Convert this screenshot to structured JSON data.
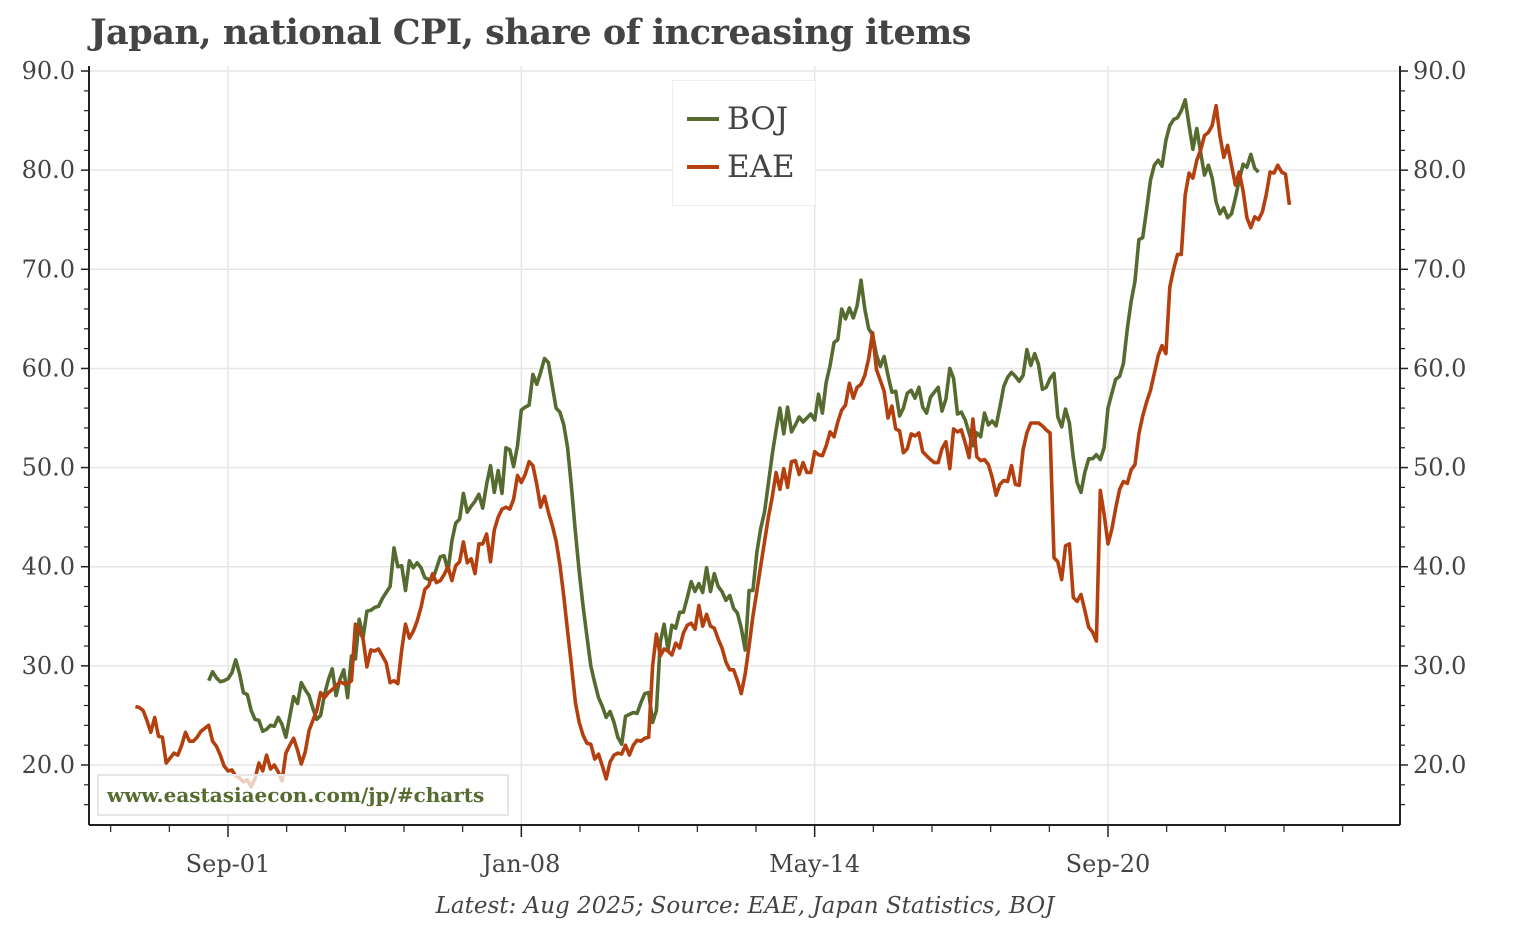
{
  "chart_data": {
    "type": "line",
    "title": "Japan, national CPI, share of increasing items",
    "xlabel": "",
    "ylabel": "",
    "ylim": [
      14,
      90.5
    ],
    "yticks": [
      20,
      30,
      40,
      50,
      60,
      70,
      80,
      90
    ],
    "ytick_labels": [
      "20.0",
      "30.0",
      "40.0",
      "50.0",
      "60.0",
      "70.0",
      "80.0",
      "90.0"
    ],
    "xtick_labels": [
      "Sep-01",
      "Jan-08",
      "May-14",
      "Sep-20"
    ],
    "grid": true,
    "legend_position": "top-center",
    "x_frequency": "monthly",
    "x_start": "1999-09",
    "x_end": "2025-08",
    "series": [
      {
        "name": "BOJ",
        "color": "#556b2f",
        "start": "2001-04",
        "values": [
          28.5,
          29.4,
          28.8,
          28.4,
          28.5,
          28.7,
          29.3,
          30.6,
          29.2,
          27.3,
          27.1,
          25.5,
          24.6,
          24.5,
          23.4,
          23.6,
          24.0,
          23.9,
          24.8,
          24.1,
          22.8,
          24.9,
          26.9,
          26.2,
          28.3,
          27.6,
          27.0,
          25.7,
          24.6,
          25.0,
          27.1,
          28.6,
          29.7,
          27.0,
          28.6,
          29.6,
          26.8,
          31.0,
          30.7,
          34.7,
          32.9,
          35.5,
          35.6,
          35.9,
          36.0,
          36.8,
          37.4,
          38.0,
          41.9,
          40.0,
          40.1,
          37.6,
          40.6,
          39.9,
          40.4,
          39.9,
          38.9,
          38.7,
          38.7,
          39.8,
          41.0,
          41.1,
          39.6,
          42.6,
          44.4,
          44.8,
          47.4,
          45.5,
          46.1,
          46.6,
          47.3,
          45.9,
          48.3,
          50.2,
          47.5,
          49.7,
          47.4,
          52.0,
          51.8,
          50.1,
          52.2,
          55.8,
          56.1,
          56.3,
          59.4,
          58.4,
          59.6,
          61.0,
          60.6,
          58.3,
          56.0,
          55.6,
          54.3,
          52.0,
          48.0,
          43.5,
          39.5,
          36.0,
          33.0,
          30.0,
          28.3,
          26.8,
          25.9,
          24.8,
          25.4,
          24.3,
          22.8,
          22.1,
          24.9,
          25.1,
          25.3,
          25.2,
          26.3,
          27.2,
          27.3,
          24.3,
          25.5,
          32.4,
          34.2,
          31.6,
          34.1,
          33.8,
          35.4,
          35.4,
          36.9,
          38.5,
          37.5,
          38.3,
          37.4,
          39.9,
          37.5,
          39.3,
          38.0,
          37.5,
          36.6,
          37.1,
          35.8,
          35.3,
          33.8,
          31.6,
          37.6,
          37.6,
          41.4,
          43.8,
          45.5,
          48.4,
          51.3,
          53.8,
          56.0,
          53.4,
          56.1,
          53.6,
          54.3,
          55.1,
          54.6,
          55.0,
          55.4,
          54.8,
          57.4,
          55.5,
          58.6,
          60.3,
          62.6,
          62.9,
          66.0,
          65.0,
          66.1,
          65.1,
          66.3,
          68.9,
          66.0,
          64.0,
          63.4,
          61.4,
          60.2,
          61.2,
          59.3,
          57.6,
          57.7,
          55.2,
          56.0,
          57.5,
          57.8,
          57.0,
          58.1,
          56.1,
          55.5,
          57.1,
          57.6,
          58.1,
          55.7,
          56.9,
          60.0,
          59.0,
          55.4,
          55.6,
          54.8,
          53.5,
          52.2,
          53.5,
          53.1,
          55.5,
          54.3,
          54.7,
          54.2,
          56.1,
          58.2,
          59.1,
          59.6,
          59.2,
          58.7,
          59.3,
          61.9,
          60.3,
          61.5,
          60.4,
          57.9,
          58.1,
          59.0,
          59.5,
          55.1,
          54.1,
          55.9,
          54.5,
          51.0,
          48.5,
          47.5,
          49.5,
          50.9,
          50.9,
          51.3,
          50.8,
          52.0,
          56.0,
          57.5,
          58.9,
          59.2,
          60.5,
          64.0,
          66.8,
          68.8,
          73.0,
          73.2,
          76.0,
          79.0,
          80.5,
          81.0,
          80.4,
          83.0,
          84.5,
          85.1,
          85.3,
          86.0,
          87.1,
          84.5,
          82.1,
          84.2,
          81.8,
          79.5,
          80.5,
          79.2,
          76.8,
          75.6,
          76.2,
          75.2,
          75.6,
          77.2,
          79.0,
          80.6,
          80.3,
          81.6,
          80.2,
          79.8
        ]
      },
      {
        "name": "EAE",
        "color": "#b5400f",
        "start": "1999-09",
        "values": [
          25.9,
          25.8,
          25.5,
          24.5,
          23.3,
          24.8,
          22.9,
          22.8,
          20.2,
          20.7,
          21.2,
          21.0,
          22.0,
          23.3,
          22.4,
          22.4,
          22.8,
          23.4,
          23.7,
          24.0,
          22.4,
          21.9,
          21.0,
          19.9,
          19.4,
          19.5,
          18.9,
          18.7,
          18.3,
          18.5,
          17.8,
          18.6,
          20.2,
          19.4,
          21.0,
          19.6,
          20.0,
          19.3,
          18.4,
          21.2,
          22.0,
          22.7,
          21.5,
          20.1,
          21.3,
          23.5,
          24.5,
          25.5,
          27.3,
          26.8,
          27.3,
          27.6,
          28.0,
          28.4,
          28.2,
          28.2,
          28.5,
          34.2,
          33.7,
          32.7,
          29.9,
          31.6,
          31.5,
          31.7,
          31.0,
          30.3,
          28.3,
          28.5,
          28.2,
          31.6,
          34.2,
          32.8,
          33.5,
          34.5,
          35.9,
          37.7,
          38.1,
          39.3,
          38.4,
          38.6,
          39.2,
          40.0,
          38.6,
          40.1,
          40.5,
          42.5,
          40.4,
          40.8,
          39.3,
          42.3,
          42.3,
          43.3,
          40.5,
          43.7,
          45.0,
          45.8,
          46.0,
          45.8,
          46.8,
          49.2,
          48.5,
          49.3,
          50.6,
          50.2,
          48.3,
          46.0,
          47.1,
          45.5,
          44.2,
          42.6,
          40.2,
          37.0,
          33.5,
          30.0,
          26.3,
          24.3,
          23.0,
          22.2,
          22.1,
          20.6,
          21.1,
          19.9,
          18.6,
          20.3,
          21.0,
          21.2,
          21.1,
          22.0,
          21.0,
          22.0,
          22.5,
          22.4,
          22.7,
          22.8,
          30.0,
          33.2,
          31.0,
          31.7,
          31.5,
          31.1,
          32.3,
          31.8,
          33.3,
          34.1,
          34.3,
          33.7,
          36.1,
          34.0,
          35.2,
          34.0,
          33.8,
          32.7,
          31.8,
          30.4,
          29.6,
          29.6,
          28.5,
          27.2,
          29.2,
          32.0,
          35.0,
          37.5,
          40.0,
          42.5,
          45.0,
          47.0,
          49.5,
          47.8,
          49.9,
          48.0,
          50.6,
          50.7,
          49.3,
          50.5,
          49.5,
          49.5,
          51.6,
          51.3,
          51.2,
          52.2,
          53.6,
          53.1,
          54.6,
          55.8,
          56.3,
          58.5,
          57.0,
          58.1,
          58.4,
          59.3,
          61.0,
          63.6,
          59.9,
          58.8,
          57.7,
          55.0,
          56.2,
          53.9,
          53.7,
          51.5,
          51.9,
          53.4,
          53.2,
          53.5,
          51.6,
          51.2,
          50.8,
          50.5,
          50.5,
          51.9,
          52.6,
          49.9,
          53.9,
          53.6,
          53.8,
          52.5,
          51.0,
          54.9,
          51.1,
          50.7,
          50.8,
          50.3,
          49.0,
          47.2,
          48.3,
          48.7,
          48.6,
          50.2,
          48.3,
          48.2,
          51.8,
          53.5,
          54.5,
          54.5,
          54.5,
          54.2,
          53.8,
          53.5,
          40.9,
          40.5,
          38.7,
          42.1,
          42.3,
          36.9,
          36.5,
          37.2,
          35.6,
          33.9,
          33.4,
          32.5,
          47.7,
          45.3,
          42.3,
          43.8,
          45.9,
          47.8,
          48.6,
          48.4,
          49.8,
          50.3,
          53.4,
          55.2,
          56.6,
          57.8,
          59.5,
          61.3,
          62.3,
          61.5,
          68.2,
          70.0,
          71.5,
          71.5,
          77.5,
          79.7,
          79.2,
          81.0,
          82.0,
          83.5,
          83.8,
          84.5,
          86.5,
          83.5,
          81.3,
          82.5,
          80.5,
          78.5,
          79.8,
          77.9,
          75.2,
          74.2,
          75.3,
          75.0,
          75.8,
          77.5,
          79.8,
          79.7,
          80.5,
          79.8,
          79.6,
          76.5
        ]
      }
    ],
    "annotations": [
      "www.eastasiaecon.com/jp/#charts"
    ],
    "source": "Latest: Aug 2025; Source: EAE, Japan Statistics, BOJ"
  },
  "title": "Japan, national CPI, share of increasing items",
  "legend": {
    "items": [
      {
        "label": "BOJ",
        "color": "#556b2f"
      },
      {
        "label": "EAE",
        "color": "#b5400f"
      }
    ]
  },
  "watermark": "www.eastasiaecon.com/jp/#charts",
  "source_note": "Latest: Aug 2025; Source: EAE, Japan Statistics, BOJ"
}
